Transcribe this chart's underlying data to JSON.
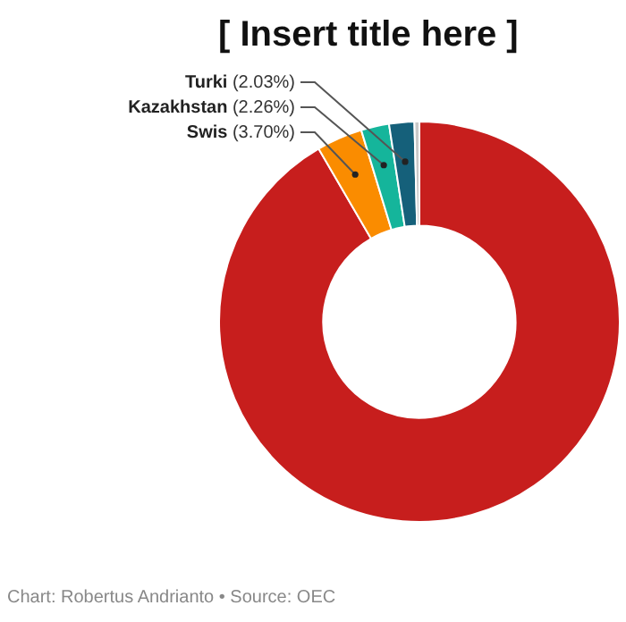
{
  "chart_data": {
    "type": "donut",
    "title": "[ Insert title here ]",
    "annotations": [
      "Chart: Robertus Andrianto • Source: OEC"
    ],
    "categories": [
      null,
      "Swis",
      "Kazakhstan",
      "Turki",
      null
    ],
    "values": [
      91.61,
      3.7,
      2.26,
      2.03,
      0.4
    ],
    "colors": [
      "#c71e1d",
      "#fa8c00",
      "#15b59b",
      "#15607a",
      "#c9c9c9"
    ],
    "value_labels": [
      null,
      "(3.70%)",
      "(2.26%)",
      "(2.03%)",
      null
    ],
    "legend": false
  }
}
